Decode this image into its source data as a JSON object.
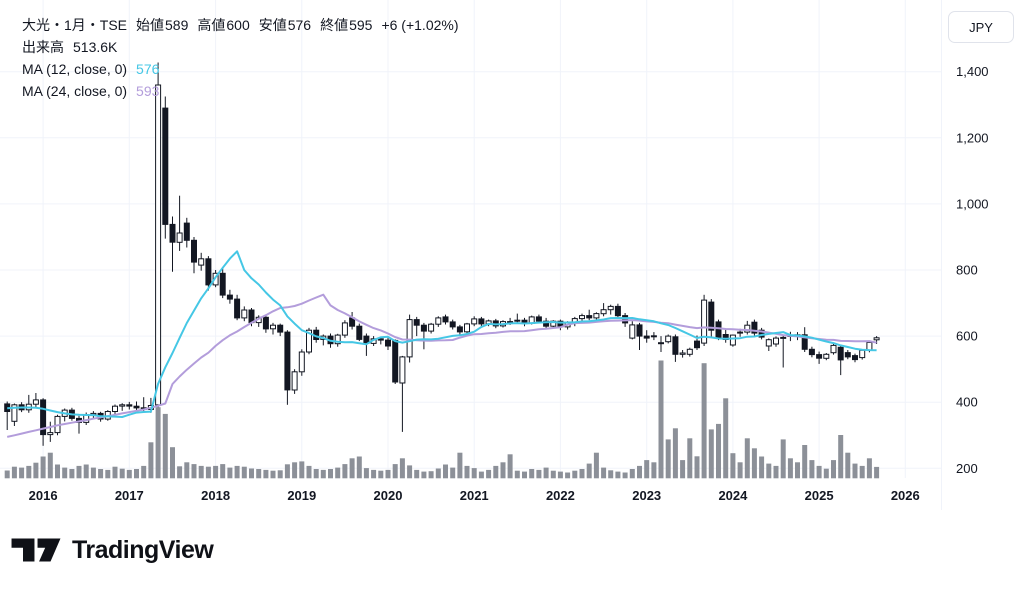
{
  "header": {
    "series_title": "大光・1月・TSE",
    "open_label": "始値",
    "open": "589",
    "high_label": "高値",
    "high": "600",
    "low_label": "安値",
    "low": "576",
    "close_label": "終値",
    "close": "595",
    "change": "+6 (+1.02%)",
    "volume_label": "出来高",
    "volume_value": "513.6K",
    "ma12_label": "MA (12, close, 0)",
    "ma12_value": "576",
    "ma24_label": "MA (24, close, 0)",
    "ma24_value": "593"
  },
  "y_axis": {
    "currency": "JPY",
    "ticks": [
      {
        "label": "1,400",
        "value": 1400
      },
      {
        "label": "1,200",
        "value": 1200
      },
      {
        "label": "1,000",
        "value": 1000
      },
      {
        "label": "800",
        "value": 800
      },
      {
        "label": "600",
        "value": 600
      },
      {
        "label": "400",
        "value": 400
      },
      {
        "label": "200",
        "value": 200
      }
    ]
  },
  "x_axis": {
    "years": [
      {
        "label": "2016",
        "year": 2016
      },
      {
        "label": "2017",
        "year": 2017
      },
      {
        "label": "2018",
        "year": 2018
      },
      {
        "label": "2019",
        "year": 2019
      },
      {
        "label": "2020",
        "year": 2020
      },
      {
        "label": "2021",
        "year": 2021
      },
      {
        "label": "2022",
        "year": 2022
      },
      {
        "label": "2023",
        "year": 2023
      },
      {
        "label": "2024",
        "year": 2024
      },
      {
        "label": "2025",
        "year": 2025
      },
      {
        "label": "2026",
        "year": 2026
      }
    ]
  },
  "footer": {
    "brand": "TradingView"
  },
  "colors": {
    "text": "#131722",
    "grid": "#f0f3fa",
    "axis_border": "#f0f3fa",
    "candle_stroke": "#131722",
    "up_fill": "#ffffff",
    "down_fill": "#131722",
    "volume": "#8c9098",
    "ma12": "#45c7e5",
    "ma24": "#b39ddb",
    "button_border": "#e0e3eb"
  },
  "chart_data": {
    "type": "candlestick",
    "instrument": "大光",
    "timeframe": "1月",
    "exchange": "TSE",
    "price_unit": "JPY",
    "grid": true,
    "ylim": [
      130,
      1480
    ],
    "columns": [
      "month",
      "open",
      "high",
      "low",
      "close",
      "volume_k"
    ],
    "candles": [
      [
        "2015-08",
        395,
        402,
        316,
        372,
        350
      ],
      [
        "2015-09",
        342,
        396,
        328,
        392,
        520
      ],
      [
        "2015-10",
        392,
        400,
        370,
        377,
        480
      ],
      [
        "2015-11",
        377,
        422,
        368,
        394,
        560
      ],
      [
        "2015-12",
        394,
        428,
        382,
        407,
        700
      ],
      [
        "2016-01",
        407,
        412,
        268,
        302,
        980
      ],
      [
        "2016-02",
        302,
        341,
        280,
        308,
        1150
      ],
      [
        "2016-03",
        308,
        362,
        300,
        357,
        620
      ],
      [
        "2016-04",
        357,
        381,
        342,
        376,
        480
      ],
      [
        "2016-05",
        376,
        383,
        344,
        351,
        420
      ],
      [
        "2016-06",
        351,
        359,
        305,
        339,
        560
      ],
      [
        "2016-07",
        339,
        369,
        331,
        362,
        620
      ],
      [
        "2016-08",
        362,
        373,
        348,
        366,
        480
      ],
      [
        "2016-09",
        366,
        371,
        341,
        349,
        420
      ],
      [
        "2016-10",
        349,
        376,
        344,
        372,
        380
      ],
      [
        "2016-11",
        372,
        393,
        361,
        388,
        520
      ],
      [
        "2016-12",
        388,
        397,
        374,
        392,
        430
      ],
      [
        "2017-01",
        392,
        401,
        378,
        388,
        380
      ],
      [
        "2017-02",
        388,
        402,
        376,
        383,
        420
      ],
      [
        "2017-03",
        383,
        415,
        372,
        378,
        560
      ],
      [
        "2017-04",
        378,
        413,
        368,
        390,
        1620
      ],
      [
        "2017-05",
        392,
        1428,
        385,
        1360,
        3200
      ],
      [
        "2017-06",
        1290,
        1325,
        895,
        938,
        2900
      ],
      [
        "2017-07",
        938,
        962,
        795,
        884,
        1400
      ],
      [
        "2017-08",
        884,
        1025,
        858,
        912,
        540
      ],
      [
        "2017-09",
        942,
        958,
        868,
        890,
        720
      ],
      [
        "2017-10",
        890,
        900,
        790,
        824,
        640
      ],
      [
        "2017-11",
        815,
        852,
        798,
        834,
        560
      ],
      [
        "2017-12",
        834,
        842,
        738,
        755,
        520
      ],
      [
        "2018-01",
        755,
        800,
        748,
        790,
        560
      ],
      [
        "2018-02",
        790,
        805,
        715,
        724,
        640
      ],
      [
        "2018-03",
        724,
        740,
        698,
        712,
        480
      ],
      [
        "2018-04",
        712,
        725,
        648,
        655,
        560
      ],
      [
        "2018-05",
        655,
        690,
        645,
        679,
        520
      ],
      [
        "2018-06",
        679,
        685,
        630,
        641,
        440
      ],
      [
        "2018-07",
        641,
        663,
        628,
        657,
        420
      ],
      [
        "2018-08",
        657,
        662,
        610,
        622,
        380
      ],
      [
        "2018-09",
        622,
        640,
        605,
        633,
        340
      ],
      [
        "2018-10",
        633,
        638,
        600,
        612,
        360
      ],
      [
        "2018-11",
        612,
        618,
        392,
        437,
        630
      ],
      [
        "2018-12",
        437,
        500,
        425,
        492,
        720
      ],
      [
        "2019-01",
        492,
        560,
        480,
        552,
        760
      ],
      [
        "2019-02",
        552,
        625,
        545,
        618,
        560
      ],
      [
        "2019-03",
        618,
        628,
        580,
        590,
        420
      ],
      [
        "2019-04",
        590,
        605,
        572,
        600,
        380
      ],
      [
        "2019-05",
        600,
        608,
        565,
        577,
        420
      ],
      [
        "2019-06",
        577,
        607,
        568,
        603,
        480
      ],
      [
        "2019-07",
        603,
        648,
        595,
        640,
        640
      ],
      [
        "2019-08",
        655,
        673,
        620,
        630,
        900
      ],
      [
        "2019-09",
        630,
        638,
        585,
        590,
        980
      ],
      [
        "2019-10",
        600,
        608,
        540,
        578,
        460
      ],
      [
        "2019-11",
        578,
        600,
        570,
        592,
        380
      ],
      [
        "2019-12",
        592,
        598,
        575,
        588,
        340
      ],
      [
        "2020-01",
        588,
        595,
        558,
        570,
        380
      ],
      [
        "2020-02",
        587,
        590,
        455,
        461,
        640
      ],
      [
        "2020-03",
        458,
        540,
        310,
        537,
        900
      ],
      [
        "2020-04",
        537,
        665,
        520,
        650,
        580
      ],
      [
        "2020-05",
        650,
        658,
        600,
        633,
        380
      ],
      [
        "2020-06",
        633,
        640,
        560,
        615,
        300
      ],
      [
        "2020-07",
        615,
        640,
        608,
        636,
        320
      ],
      [
        "2020-08",
        636,
        660,
        628,
        655,
        440
      ],
      [
        "2020-09",
        658,
        665,
        635,
        643,
        620
      ],
      [
        "2020-10",
        643,
        650,
        620,
        628,
        480
      ],
      [
        "2020-11",
        628,
        634,
        604,
        613,
        1150
      ],
      [
        "2020-12",
        613,
        640,
        608,
        637,
        560
      ],
      [
        "2021-01",
        637,
        660,
        630,
        652,
        460
      ],
      [
        "2021-02",
        652,
        658,
        628,
        637,
        300
      ],
      [
        "2021-03",
        637,
        650,
        630,
        646,
        380
      ],
      [
        "2021-04",
        646,
        652,
        624,
        631,
        560
      ],
      [
        "2021-05",
        631,
        648,
        626,
        644,
        720
      ],
      [
        "2021-06",
        644,
        655,
        634,
        640,
        1080
      ],
      [
        "2021-07",
        645,
        668,
        638,
        648,
        340
      ],
      [
        "2021-08",
        648,
        655,
        630,
        638,
        300
      ],
      [
        "2021-09",
        638,
        662,
        635,
        658,
        420
      ],
      [
        "2021-10",
        658,
        665,
        640,
        645,
        380
      ],
      [
        "2021-11",
        645,
        655,
        622,
        630,
        480
      ],
      [
        "2021-12",
        630,
        648,
        625,
        645,
        340
      ],
      [
        "2022-01",
        645,
        650,
        618,
        628,
        300
      ],
      [
        "2022-02",
        628,
        645,
        620,
        640,
        260
      ],
      [
        "2022-03",
        640,
        658,
        630,
        653,
        340
      ],
      [
        "2022-04",
        653,
        668,
        645,
        662,
        420
      ],
      [
        "2022-05",
        662,
        680,
        648,
        655,
        660
      ],
      [
        "2022-06",
        655,
        672,
        648,
        668,
        1150
      ],
      [
        "2022-07",
        668,
        700,
        660,
        680,
        480
      ],
      [
        "2022-08",
        680,
        695,
        665,
        690,
        360
      ],
      [
        "2022-09",
        690,
        698,
        655,
        662,
        300
      ],
      [
        "2022-10",
        662,
        670,
        628,
        640,
        260
      ],
      [
        "2022-11",
        594,
        645,
        590,
        634,
        420
      ],
      [
        "2022-12",
        634,
        640,
        558,
        600,
        560
      ],
      [
        "2023-01",
        600,
        618,
        580,
        594,
        820
      ],
      [
        "2023-02",
        600,
        612,
        588,
        601,
        720
      ],
      [
        "2023-03",
        578,
        600,
        552,
        580,
        5300
      ],
      [
        "2023-04",
        583,
        605,
        578,
        600,
        1750
      ],
      [
        "2023-05",
        598,
        605,
        522,
        545,
        2250
      ],
      [
        "2023-06",
        545,
        558,
        535,
        549,
        820
      ],
      [
        "2023-07",
        545,
        565,
        538,
        560,
        1800
      ],
      [
        "2023-08",
        585,
        602,
        558,
        565,
        990
      ],
      [
        "2023-09",
        579,
        725,
        570,
        709,
        5180
      ],
      [
        "2023-10",
        703,
        712,
        598,
        618,
        2200
      ],
      [
        "2023-11",
        643,
        650,
        588,
        594,
        2450
      ],
      [
        "2023-12",
        605,
        622,
        580,
        590,
        3600
      ],
      [
        "2024-01",
        573,
        605,
        568,
        603,
        1130
      ],
      [
        "2024-02",
        610,
        622,
        598,
        612,
        720
      ],
      [
        "2024-03",
        612,
        646,
        605,
        633,
        1800
      ],
      [
        "2024-04",
        642,
        650,
        602,
        609,
        1350
      ],
      [
        "2024-05",
        618,
        625,
        590,
        597,
        980
      ],
      [
        "2024-06",
        570,
        593,
        555,
        589,
        660
      ],
      [
        "2024-07",
        576,
        599,
        568,
        594,
        560
      ],
      [
        "2024-08",
        594,
        602,
        505,
        596,
        1750
      ],
      [
        "2024-09",
        600,
        613,
        585,
        602,
        900
      ],
      [
        "2024-10",
        602,
        612,
        588,
        604,
        720
      ],
      [
        "2024-11",
        604,
        627,
        552,
        560,
        1500
      ],
      [
        "2024-12",
        560,
        568,
        536,
        544,
        820
      ],
      [
        "2025-01",
        544,
        553,
        516,
        533,
        560
      ],
      [
        "2025-02",
        533,
        549,
        527,
        545,
        430
      ],
      [
        "2025-03",
        550,
        576,
        544,
        572,
        820
      ],
      [
        "2025-04",
        566,
        572,
        482,
        528,
        1950
      ],
      [
        "2025-05",
        550,
        558,
        530,
        537,
        1150
      ],
      [
        "2025-06",
        541,
        547,
        521,
        529,
        660
      ],
      [
        "2025-07",
        535,
        561,
        529,
        557,
        560
      ],
      [
        "2025-08",
        557,
        584,
        551,
        581,
        900
      ],
      [
        "2025-09",
        589,
        600,
        576,
        595,
        513.6
      ]
    ],
    "ma12": {
      "period": 12,
      "color": "#45c7e5",
      "last_value": 576,
      "lead_values": [
        382,
        383,
        384,
        384,
        383,
        380,
        375,
        370,
        366,
        363,
        362
      ]
    },
    "ma24": {
      "period": 24,
      "color": "#b39ddb",
      "last_value": 593,
      "lead_values": [
        295,
        300,
        305,
        310,
        315,
        320,
        325,
        330,
        334,
        338,
        342,
        346,
        350,
        354,
        358,
        362,
        366,
        370,
        374,
        378,
        383,
        389,
        396
      ]
    }
  }
}
